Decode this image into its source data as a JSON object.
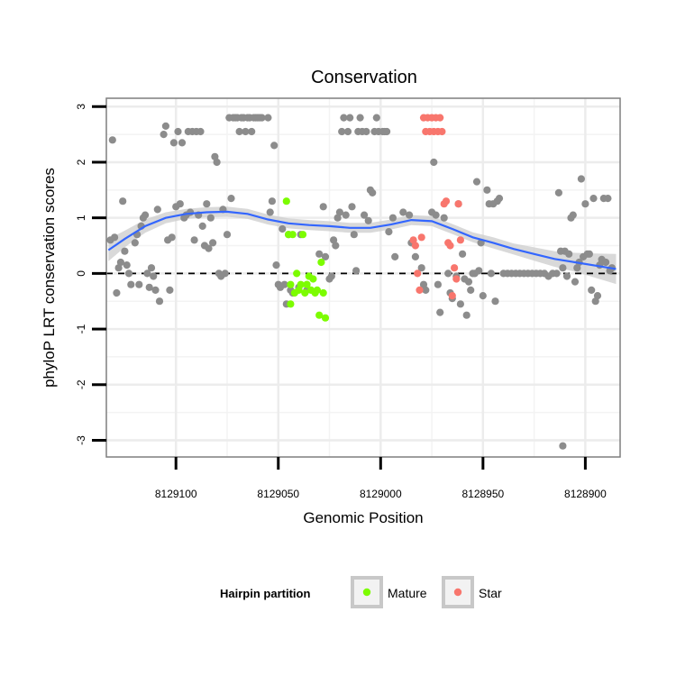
{
  "chart_data": {
    "type": "scatter",
    "title": "Conservation",
    "xlabel": "Genomic Position",
    "ylabel": "phyloP LRT conservation scores",
    "x_reversed": true,
    "xlim": [
      8129134,
      8128883
    ],
    "ylim": [
      -3.3,
      3.15
    ],
    "x_ticks": [
      8129100,
      8129050,
      8129000,
      8128950,
      8128900
    ],
    "x_tick_labels": [
      "8129100",
      "8129050",
      "8129000",
      "8128950",
      "8128900"
    ],
    "y_ticks": [
      3,
      2,
      1,
      0,
      -1,
      -2,
      -3
    ],
    "y_tick_labels": [
      "3",
      "2",
      "1",
      "0",
      "-1",
      "-2",
      "-3"
    ],
    "reference_line": {
      "y": 0,
      "style": "dashed"
    },
    "legend": {
      "title": "Hairpin partition",
      "entries": [
        {
          "label": "Mature",
          "color": "#7cfc00"
        },
        {
          "label": "Star",
          "color": "#f8766d"
        }
      ]
    },
    "colors": {
      "other": "#8c8c8c",
      "mature": "#7cfc00",
      "star": "#f8766d",
      "smooth": "#3366ff",
      "band": "#cccccc"
    },
    "smooth": {
      "x": [
        8129133,
        8129125,
        8129115,
        8129105,
        8129095,
        8129085,
        8129075,
        8129065,
        8129055,
        8129045,
        8129035,
        8129025,
        8129015,
        8129005,
        8128995,
        8128985,
        8128975,
        8128965,
        8128955,
        8128945,
        8128935,
        8128925,
        8128915,
        8128905,
        8128895,
        8128885
      ],
      "y": [
        0.42,
        0.62,
        0.85,
        1.0,
        1.07,
        1.1,
        1.11,
        1.07,
        0.97,
        0.9,
        0.87,
        0.85,
        0.82,
        0.82,
        0.88,
        0.96,
        0.94,
        0.8,
        0.65,
        0.55,
        0.44,
        0.35,
        0.26,
        0.2,
        0.14,
        0.08
      ],
      "se": [
        0.2,
        0.15,
        0.12,
        0.1,
        0.09,
        0.09,
        0.09,
        0.09,
        0.09,
        0.09,
        0.09,
        0.09,
        0.09,
        0.09,
        0.09,
        0.09,
        0.09,
        0.09,
        0.09,
        0.1,
        0.1,
        0.12,
        0.14,
        0.17,
        0.22,
        0.27
      ]
    },
    "series": [
      {
        "name": "Other",
        "points": [
          [
            8129132,
            0.6
          ],
          [
            8129131,
            2.4
          ],
          [
            8129130,
            0.65
          ],
          [
            8129129,
            -0.35
          ],
          [
            8129128,
            0.1
          ],
          [
            8129127,
            0.2
          ],
          [
            8129126,
            1.3
          ],
          [
            8129125,
            0.4
          ],
          [
            8129124,
            0.15
          ],
          [
            8129123,
            0.0
          ],
          [
            8129122,
            -0.2
          ],
          [
            8129120,
            0.55
          ],
          [
            8129119,
            0.7
          ],
          [
            8129118,
            -0.2
          ],
          [
            8129117,
            0.85
          ],
          [
            8129116,
            1.0
          ],
          [
            8129115,
            1.05
          ],
          [
            8129114,
            0.0
          ],
          [
            8129113,
            -0.25
          ],
          [
            8129112,
            0.1
          ],
          [
            8129111,
            -0.05
          ],
          [
            8129110,
            -0.3
          ],
          [
            8129109,
            1.15
          ],
          [
            8129108,
            -0.5
          ],
          [
            8129106,
            2.5
          ],
          [
            8129105,
            2.65
          ],
          [
            8129104,
            0.6
          ],
          [
            8129103,
            -0.3
          ],
          [
            8129102,
            0.65
          ],
          [
            8129101,
            2.35
          ],
          [
            8129100,
            1.2
          ],
          [
            8129099,
            2.55
          ],
          [
            8129098,
            1.25
          ],
          [
            8129097,
            2.35
          ],
          [
            8129096,
            1.0
          ],
          [
            8129095,
            1.05
          ],
          [
            8129094,
            2.55
          ],
          [
            8129093,
            1.1
          ],
          [
            8129092,
            2.55
          ],
          [
            8129091,
            0.6
          ],
          [
            8129090,
            2.55
          ],
          [
            8129089,
            1.05
          ],
          [
            8129088,
            2.55
          ],
          [
            8129087,
            0.85
          ],
          [
            8129086,
            0.5
          ],
          [
            8129085,
            1.25
          ],
          [
            8129084,
            0.45
          ],
          [
            8129083,
            1.0
          ],
          [
            8129082,
            0.55
          ],
          [
            8129081,
            2.1
          ],
          [
            8129080,
            2.0
          ],
          [
            8129079,
            0.0
          ],
          [
            8129078,
            -0.05
          ],
          [
            8129077,
            1.15
          ],
          [
            8129076,
            0.0
          ],
          [
            8129075,
            0.7
          ],
          [
            8129074,
            2.8
          ],
          [
            8129073,
            1.35
          ],
          [
            8129072,
            2.8
          ],
          [
            8129071,
            2.8
          ],
          [
            8129070,
            2.8
          ],
          [
            8129069,
            2.55
          ],
          [
            8129068,
            2.8
          ],
          [
            8129067,
            2.8
          ],
          [
            8129066,
            2.55
          ],
          [
            8129065,
            2.8
          ],
          [
            8129064,
            2.8
          ],
          [
            8129063,
            2.55
          ],
          [
            8129062,
            2.8
          ],
          [
            8129061,
            2.8
          ],
          [
            8129060,
            2.8
          ],
          [
            8129059,
            2.8
          ],
          [
            8129058,
            2.8
          ],
          [
            8129055,
            2.8
          ],
          [
            8129054,
            1.1
          ],
          [
            8129053,
            1.3
          ],
          [
            8129052,
            2.3
          ],
          [
            8129051,
            0.15
          ],
          [
            8129050,
            -0.2
          ],
          [
            8129049,
            -0.25
          ],
          [
            8129048,
            0.8
          ],
          [
            8129047,
            -0.2
          ],
          [
            8129046,
            -0.55
          ],
          [
            8129045,
            0.7
          ],
          [
            8129044,
            -0.3
          ],
          [
            8129043,
            -0.35
          ],
          [
            8129040,
            -0.25
          ],
          [
            8129039,
            0.7
          ],
          [
            8129036,
            -0.3
          ],
          [
            8129030,
            0.35
          ],
          [
            8129028,
            1.2
          ],
          [
            8129027,
            0.3
          ],
          [
            8129025,
            -0.1
          ],
          [
            8129024,
            -0.05
          ],
          [
            8129023,
            0.6
          ],
          [
            8129022,
            0.5
          ],
          [
            8129021,
            1.0
          ],
          [
            8129020,
            1.1
          ],
          [
            8129019,
            2.55
          ],
          [
            8129018,
            2.8
          ],
          [
            8129017,
            1.05
          ],
          [
            8129016,
            2.55
          ],
          [
            8129015,
            2.8
          ],
          [
            8129014,
            1.2
          ],
          [
            8129013,
            0.7
          ],
          [
            8129012,
            0.05
          ],
          [
            8129011,
            2.55
          ],
          [
            8129010,
            2.8
          ],
          [
            8129009,
            2.55
          ],
          [
            8129008,
            1.05
          ],
          [
            8129007,
            2.55
          ],
          [
            8129006,
            0.95
          ],
          [
            8129005,
            1.5
          ],
          [
            8129004,
            1.45
          ],
          [
            8129003,
            2.55
          ],
          [
            8129002,
            2.8
          ],
          [
            8129001,
            2.55
          ],
          [
            8128999,
            2.55
          ],
          [
            8128998,
            2.55
          ],
          [
            8128997,
            2.55
          ],
          [
            8128996,
            0.75
          ],
          [
            8128994,
            1.0
          ],
          [
            8128993,
            0.3
          ],
          [
            8128989,
            1.1
          ],
          [
            8128986,
            1.05
          ],
          [
            8128985,
            0.55
          ],
          [
            8128983,
            0.3
          ],
          [
            8128980,
            0.1
          ],
          [
            8128979,
            -0.2
          ],
          [
            8128978,
            -0.3
          ],
          [
            8128975,
            1.1
          ],
          [
            8128974,
            2.0
          ],
          [
            8128973,
            1.05
          ],
          [
            8128972,
            -0.2
          ],
          [
            8128971,
            -0.7
          ],
          [
            8128969,
            1.0
          ],
          [
            8128967,
            0.0
          ],
          [
            8128966,
            -0.35
          ],
          [
            8128965,
            -0.45
          ],
          [
            8128963,
            -0.05
          ],
          [
            8128962,
            1.25
          ],
          [
            8128961,
            -0.55
          ],
          [
            8128960,
            0.35
          ],
          [
            8128959,
            -0.1
          ],
          [
            8128958,
            -0.75
          ],
          [
            8128957,
            -0.15
          ],
          [
            8128956,
            -0.3
          ],
          [
            8128955,
            0.0
          ],
          [
            8128954,
            0.0
          ],
          [
            8128953,
            1.65
          ],
          [
            8128952,
            0.05
          ],
          [
            8128951,
            0.55
          ],
          [
            8128950,
            -0.4
          ],
          [
            8128948,
            1.5
          ],
          [
            8128947,
            1.25
          ],
          [
            8128946,
            0.0
          ],
          [
            8128945,
            1.25
          ],
          [
            8128944,
            -0.5
          ],
          [
            8128943,
            1.3
          ],
          [
            8128942,
            1.35
          ],
          [
            8128940,
            0.0
          ],
          [
            8128938,
            0.0
          ],
          [
            8128936,
            0.0
          ],
          [
            8128934,
            0.0
          ],
          [
            8128932,
            0.0
          ],
          [
            8128930,
            0.0
          ],
          [
            8128928,
            0.0
          ],
          [
            8128926,
            0.0
          ],
          [
            8128924,
            0.0
          ],
          [
            8128922,
            0.0
          ],
          [
            8128920,
            0.0
          ],
          [
            8128918,
            -0.05
          ],
          [
            8128916,
            0.0
          ],
          [
            8128914,
            0.0
          ],
          [
            8128913,
            1.45
          ],
          [
            8128912,
            0.4
          ],
          [
            8128911,
            0.1
          ],
          [
            8128910,
            0.4
          ],
          [
            8128909,
            -0.05
          ],
          [
            8128908,
            0.35
          ],
          [
            8128907,
            1.0
          ],
          [
            8128906,
            1.05
          ],
          [
            8128905,
            -0.15
          ],
          [
            8128904,
            0.1
          ],
          [
            8128903,
            0.2
          ],
          [
            8128902,
            1.7
          ],
          [
            8128901,
            0.3
          ],
          [
            8128900,
            1.25
          ],
          [
            8128899,
            0.35
          ],
          [
            8128898,
            0.35
          ],
          [
            8128897,
            -0.3
          ],
          [
            8128896,
            1.35
          ],
          [
            8128895,
            -0.5
          ],
          [
            8128894,
            -0.4
          ],
          [
            8128893,
            0.15
          ],
          [
            8128892,
            0.25
          ],
          [
            8128891,
            1.35
          ],
          [
            8128890,
            0.2
          ],
          [
            8128889,
            1.35
          ],
          [
            8128888,
            0.05
          ],
          [
            8128887,
            0.1
          ],
          [
            8128911,
            -3.1
          ]
        ]
      },
      {
        "name": "Mature",
        "points": [
          [
            8129046,
            1.3
          ],
          [
            8129045,
            0.7
          ],
          [
            8129044,
            -0.2
          ],
          [
            8129043,
            0.7
          ],
          [
            8129042,
            -0.35
          ],
          [
            8129041,
            0.0
          ],
          [
            8129040,
            -0.3
          ],
          [
            8129039,
            -0.2
          ],
          [
            8129038,
            0.7
          ],
          [
            8129037,
            -0.35
          ],
          [
            8129036,
            -0.2
          ],
          [
            8129035,
            -0.05
          ],
          [
            8129034,
            -0.3
          ],
          [
            8129033,
            -0.1
          ],
          [
            8129032,
            -0.35
          ],
          [
            8129031,
            -0.3
          ],
          [
            8129030,
            -0.75
          ],
          [
            8129029,
            0.2
          ],
          [
            8129028,
            -0.35
          ],
          [
            8129027,
            -0.8
          ],
          [
            8129044,
            -0.55
          ],
          [
            8129036,
            -0.2
          ]
        ]
      },
      {
        "name": "Star",
        "points": [
          [
            8128984,
            0.6
          ],
          [
            8128983,
            0.5
          ],
          [
            8128982,
            0.0
          ],
          [
            8128981,
            -0.3
          ],
          [
            8128980,
            0.65
          ],
          [
            8128979,
            2.8
          ],
          [
            8128978,
            2.55
          ],
          [
            8128977,
            2.8
          ],
          [
            8128976,
            2.55
          ],
          [
            8128975,
            2.8
          ],
          [
            8128974,
            2.55
          ],
          [
            8128973,
            2.8
          ],
          [
            8128972,
            2.55
          ],
          [
            8128971,
            2.8
          ],
          [
            8128970,
            2.55
          ],
          [
            8128969,
            1.25
          ],
          [
            8128968,
            1.3
          ],
          [
            8128967,
            0.55
          ],
          [
            8128966,
            0.5
          ],
          [
            8128965,
            -0.4
          ],
          [
            8128964,
            0.1
          ],
          [
            8128963,
            -0.1
          ],
          [
            8128962,
            1.25
          ],
          [
            8128961,
            0.6
          ]
        ]
      }
    ]
  }
}
